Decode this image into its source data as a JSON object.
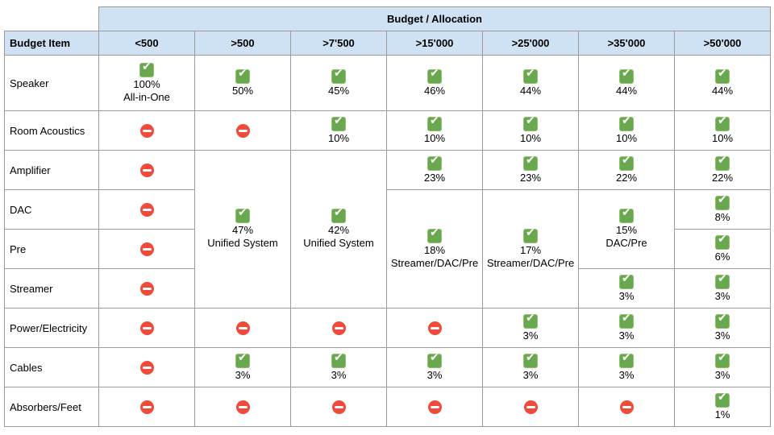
{
  "table": {
    "title": "Budget / Allocation",
    "corner_label": "Budget Item",
    "columns": [
      "<500",
      ">500",
      ">7'500",
      ">15'000",
      ">25'000",
      ">35'000",
      ">50'000"
    ],
    "icons": {
      "allowed": "check-icon",
      "not_allocated": "no-entry-icon"
    },
    "colors": {
      "header_bg": "#cfe2f3",
      "check_green": "#6aa84f",
      "no_entry_red": "#f04a3a",
      "grid_border": "#9b9b9b"
    },
    "body": {
      "speaker": {
        "label": "Speaker",
        "lt500": {
          "icon": "check-icon",
          "pct": "100%",
          "note": "All-in-One"
        },
        "gt500": {
          "icon": "check-icon",
          "pct": "50%"
        },
        "gt7500": {
          "icon": "check-icon",
          "pct": "45%"
        },
        "gt15000": {
          "icon": "check-icon",
          "pct": "46%"
        },
        "gt25000": {
          "icon": "check-icon",
          "pct": "44%"
        },
        "gt35000": {
          "icon": "check-icon",
          "pct": "44%"
        },
        "gt50000": {
          "icon": "check-icon",
          "pct": "44%"
        }
      },
      "room_acoustics": {
        "label": "Room Acoustics",
        "lt500": {
          "icon": "no-entry-icon"
        },
        "gt500": {
          "icon": "no-entry-icon"
        },
        "gt7500": {
          "icon": "check-icon",
          "pct": "10%"
        },
        "gt15000": {
          "icon": "check-icon",
          "pct": "10%"
        },
        "gt25000": {
          "icon": "check-icon",
          "pct": "10%"
        },
        "gt35000": {
          "icon": "check-icon",
          "pct": "10%"
        },
        "gt50000": {
          "icon": "check-icon",
          "pct": "10%"
        }
      },
      "amplifier": {
        "label": "Amplifier",
        "lt500": {
          "icon": "no-entry-icon"
        },
        "gt500": {
          "icon": "check-icon",
          "pct": "47%",
          "note": "Unified System"
        },
        "gt7500": {
          "icon": "check-icon",
          "pct": "42%",
          "note": "Unified System"
        },
        "gt15000": {
          "icon": "check-icon",
          "pct": "23%"
        },
        "gt25000": {
          "icon": "check-icon",
          "pct": "23%"
        },
        "gt35000": {
          "icon": "check-icon",
          "pct": "22%"
        },
        "gt50000": {
          "icon": "check-icon",
          "pct": "22%"
        }
      },
      "dac": {
        "label": "DAC",
        "lt500": {
          "icon": "no-entry-icon"
        },
        "gt15000": {
          "icon": "check-icon",
          "pct": "18%",
          "note": "Streamer/DAC/Pre"
        },
        "gt25000": {
          "icon": "check-icon",
          "pct": "17%",
          "note": "Streamer/DAC/Pre"
        },
        "gt35000": {
          "icon": "check-icon",
          "pct": "15%",
          "note": "DAC/Pre"
        },
        "gt50000": {
          "icon": "check-icon",
          "pct": "8%"
        }
      },
      "pre": {
        "label": "Pre",
        "lt500": {
          "icon": "no-entry-icon"
        },
        "gt50000": {
          "icon": "check-icon",
          "pct": "6%"
        }
      },
      "streamer": {
        "label": "Streamer",
        "lt500": {
          "icon": "no-entry-icon"
        },
        "gt35000": {
          "icon": "check-icon",
          "pct": "3%"
        },
        "gt50000": {
          "icon": "check-icon",
          "pct": "3%"
        }
      },
      "power_electricity": {
        "label": "Power/Electricity",
        "lt500": {
          "icon": "no-entry-icon"
        },
        "gt500": {
          "icon": "no-entry-icon"
        },
        "gt7500": {
          "icon": "no-entry-icon"
        },
        "gt15000": {
          "icon": "no-entry-icon"
        },
        "gt25000": {
          "icon": "check-icon",
          "pct": "3%"
        },
        "gt35000": {
          "icon": "check-icon",
          "pct": "3%"
        },
        "gt50000": {
          "icon": "check-icon",
          "pct": "3%"
        }
      },
      "cables": {
        "label": "Cables",
        "lt500": {
          "icon": "no-entry-icon"
        },
        "gt500": {
          "icon": "check-icon",
          "pct": "3%"
        },
        "gt7500": {
          "icon": "check-icon",
          "pct": "3%"
        },
        "gt15000": {
          "icon": "check-icon",
          "pct": "3%"
        },
        "gt25000": {
          "icon": "check-icon",
          "pct": "3%"
        },
        "gt35000": {
          "icon": "check-icon",
          "pct": "3%"
        },
        "gt50000": {
          "icon": "check-icon",
          "pct": "3%"
        }
      },
      "absorbers_feet": {
        "label": "Absorbers/Feet",
        "lt500": {
          "icon": "no-entry-icon"
        },
        "gt500": {
          "icon": "no-entry-icon"
        },
        "gt7500": {
          "icon": "no-entry-icon"
        },
        "gt15000": {
          "icon": "no-entry-icon"
        },
        "gt25000": {
          "icon": "no-entry-icon"
        },
        "gt35000": {
          "icon": "no-entry-icon"
        },
        "gt50000": {
          "icon": "check-icon",
          "pct": "1%"
        }
      }
    }
  }
}
